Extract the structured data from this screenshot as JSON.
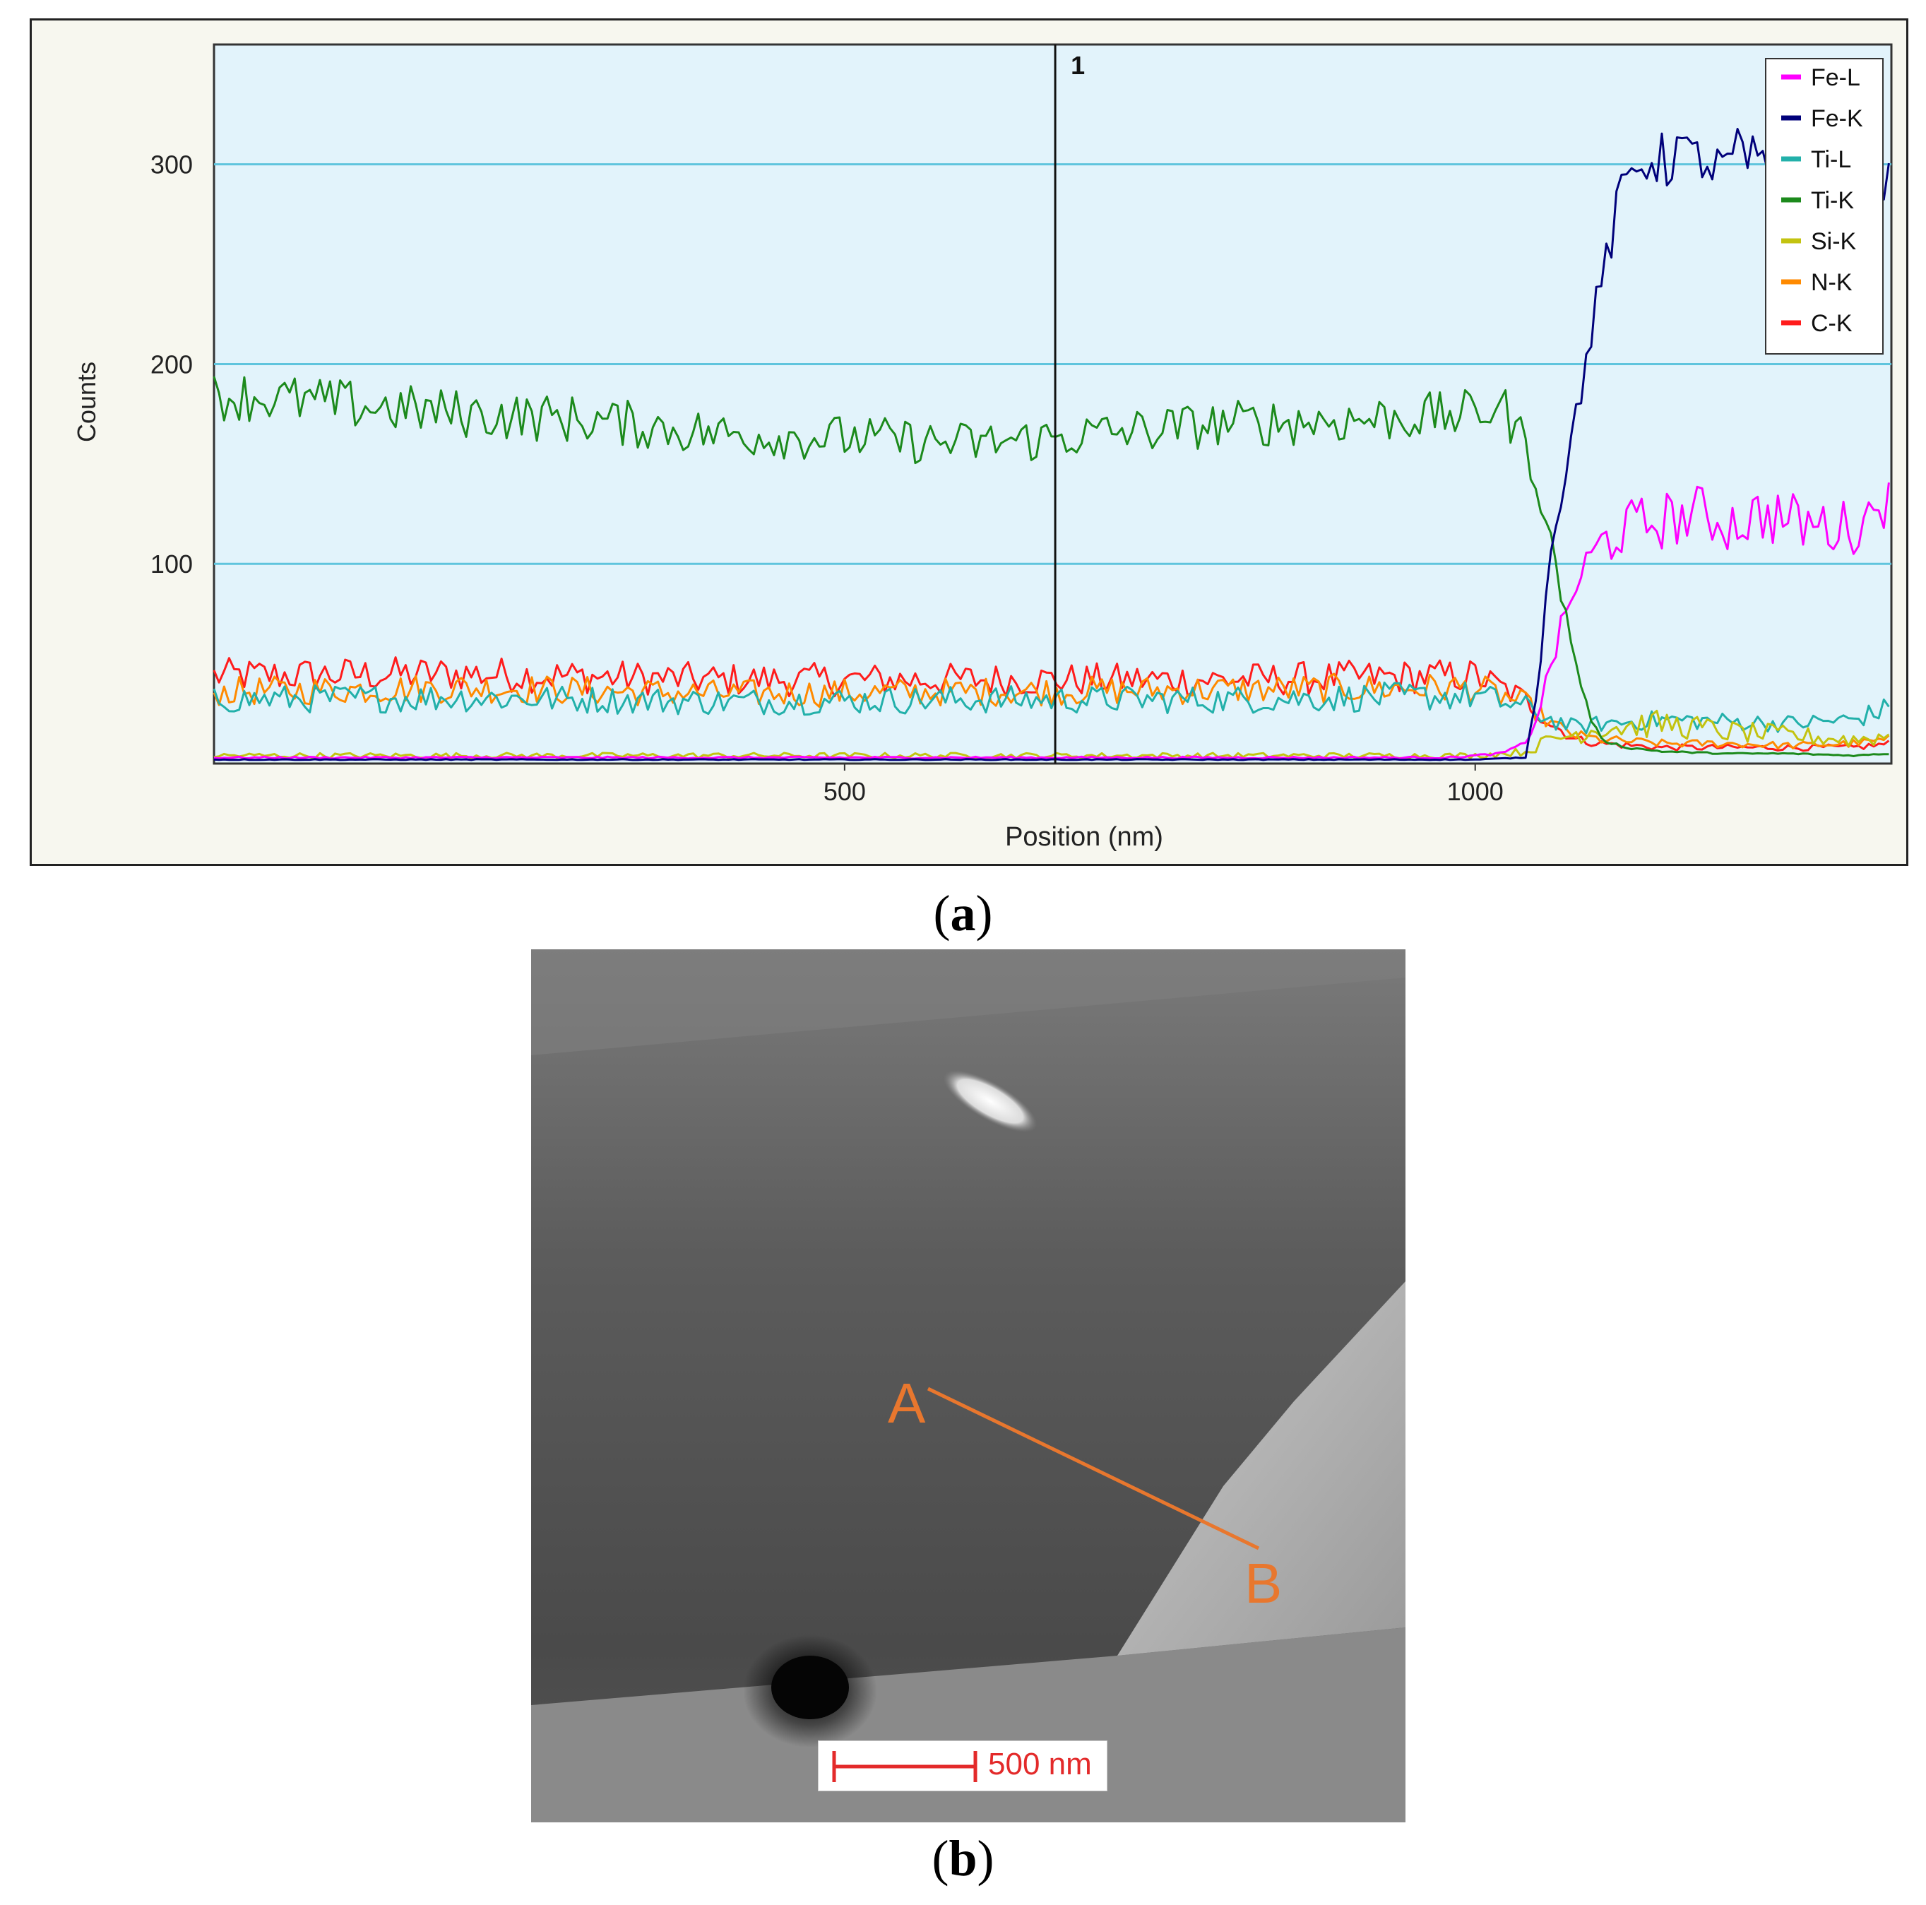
{
  "figure": {
    "panel_a_label": "a",
    "panel_b_label": "b"
  },
  "chart_data": {
    "type": "line",
    "xlabel": "Position (nm)",
    "ylabel": "Counts",
    "xlim": [
      0,
      1330
    ],
    "ylim": [
      0,
      360
    ],
    "x_ticks": [
      500,
      1000
    ],
    "y_ticks": [
      100,
      200,
      300
    ],
    "grid": "horizontal",
    "background": "#e2f3fb",
    "gridline_color": "#5fc4dd",
    "marker": {
      "x": 667,
      "label": "1"
    },
    "legend_position": "top-right",
    "series": [
      {
        "name": "Fe-L",
        "color": "#ff00ff",
        "x": [
          0,
          200,
          400,
          600,
          800,
          980,
          1020,
          1040,
          1050,
          1060,
          1070,
          1080,
          1100,
          1120,
          1150,
          1180,
          1200,
          1230,
          1260,
          1290,
          1310,
          1320,
          1330
        ],
        "values": [
          3,
          3,
          3,
          3,
          3,
          3,
          5,
          10,
          25,
          50,
          70,
          90,
          110,
          118,
          122,
          125,
          120,
          125,
          120,
          118,
          120,
          140,
          125
        ]
      },
      {
        "name": "Fe-K",
        "color": "#00007a",
        "x": [
          0,
          200,
          400,
          600,
          800,
          1000,
          1040,
          1050,
          1060,
          1070,
          1080,
          1090,
          1100,
          1110,
          1120,
          1130,
          1140,
          1150,
          1160,
          1170,
          1180,
          1190,
          1200,
          1210,
          1220,
          1230,
          1240,
          1250,
          1260,
          1270,
          1280,
          1290,
          1300,
          1310,
          1320,
          1330
        ],
        "values": [
          2,
          2,
          2,
          2,
          2,
          2,
          3,
          40,
          110,
          140,
          175,
          210,
          240,
          270,
          290,
          300,
          305,
          300,
          310,
          300,
          305,
          295,
          300,
          305,
          300,
          295,
          300,
          305,
          300,
          298,
          302,
          300,
          296,
          285,
          290,
          290
        ]
      },
      {
        "name": "Ti-L",
        "color": "#22b0aa",
        "x": [
          0,
          200,
          400,
          600,
          800,
          1000,
          1040,
          1060,
          1080,
          1100,
          1150,
          1200,
          1250,
          1300,
          1330
        ],
        "values": [
          32,
          33,
          31,
          32,
          32,
          34,
          28,
          22,
          18,
          20,
          22,
          21,
          20,
          22,
          28
        ]
      },
      {
        "name": "Ti-K",
        "color": "#1c8a1c",
        "x": [
          0,
          100,
          200,
          300,
          400,
          500,
          600,
          667,
          700,
          800,
          900,
          1000,
          1020,
          1040,
          1050,
          1060,
          1070,
          1080,
          1090,
          1100,
          1120,
          1150,
          1200,
          1250,
          1300,
          1330
        ],
        "values": [
          185,
          180,
          175,
          172,
          165,
          163,
          160,
          163,
          165,
          170,
          172,
          175,
          180,
          160,
          140,
          110,
          80,
          50,
          25,
          12,
          8,
          6,
          5,
          5,
          4,
          5
        ]
      },
      {
        "name": "Si-K",
        "color": "#c3c310",
        "x": [
          0,
          400,
          800,
          1000,
          1040,
          1060,
          1100,
          1150,
          1200,
          1250,
          1300,
          1330
        ],
        "values": [
          4,
          4,
          4,
          4,
          6,
          12,
          18,
          20,
          16,
          14,
          12,
          14
        ]
      },
      {
        "name": "N-K",
        "color": "#ff8a00",
        "x": [
          0,
          200,
          400,
          600,
          800,
          1000,
          1040,
          1060,
          1080,
          1100,
          1150,
          1200,
          1250,
          1300,
          1330
        ],
        "values": [
          36,
          38,
          35,
          36,
          37,
          38,
          30,
          20,
          14,
          12,
          10,
          10,
          9,
          10,
          12
        ]
      },
      {
        "name": "C-K",
        "color": "#ff1c1c",
        "x": [
          0,
          200,
          400,
          600,
          800,
          1000,
          1040,
          1060,
          1080,
          1100,
          1150,
          1200,
          1250,
          1300,
          1330
        ],
        "values": [
          44,
          45,
          42,
          42,
          42,
          44,
          32,
          20,
          12,
          10,
          8,
          8,
          8,
          8,
          10
        ]
      }
    ]
  },
  "micrograph": {
    "point_a_label": "A",
    "point_b_label": "B",
    "line_color": "#e8772e",
    "scale_bar_label": "500 nm",
    "scale_bar_color": "#e32a2a"
  }
}
